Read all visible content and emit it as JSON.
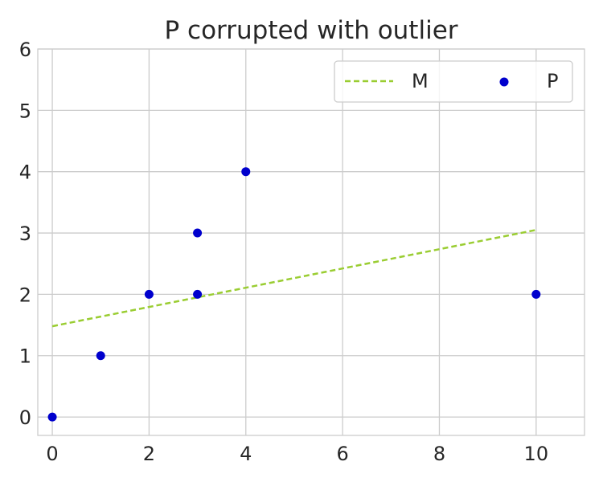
{
  "chart_data": {
    "type": "scatter",
    "title": "P corrupted with outlier",
    "xlabel": "",
    "ylabel": "",
    "xlim": [
      -0.3,
      11
    ],
    "ylim": [
      -0.3,
      6
    ],
    "xticks": [
      0,
      2,
      4,
      6,
      8,
      10
    ],
    "yticks": [
      0,
      1,
      2,
      3,
      4,
      5,
      6
    ],
    "grid": true,
    "legend": {
      "position": "top-right",
      "columns": 2
    },
    "series": [
      {
        "name": "M",
        "type": "line",
        "style": "dashed",
        "color": "#9ACD32",
        "x": [
          0,
          10
        ],
        "y": [
          1.48,
          3.05
        ]
      },
      {
        "name": "P",
        "type": "scatter",
        "color": "#0000CD",
        "x": [
          0,
          1,
          2,
          3,
          3,
          4,
          10
        ],
        "y": [
          0,
          1,
          2,
          2,
          3,
          4,
          2
        ]
      }
    ]
  }
}
